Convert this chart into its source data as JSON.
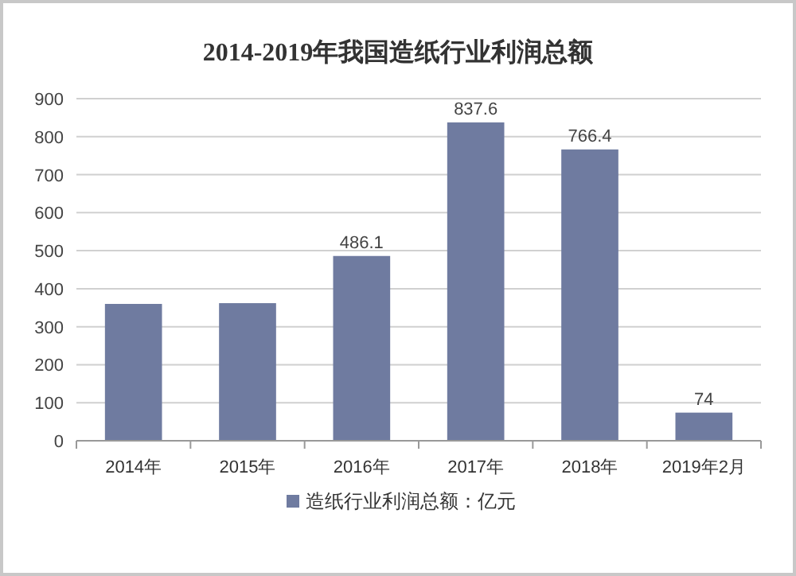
{
  "chart_data": {
    "type": "bar",
    "title": "2014-2019年我国造纸行业利润总额",
    "categories": [
      "2014年",
      "2015年",
      "2016年",
      "2017年",
      "2018年",
      "2019年2月"
    ],
    "series": [
      {
        "name": "造纸行业利润总额：亿元",
        "color": "#6f7ba0",
        "values": [
          360,
          362,
          486.1,
          837.6,
          766.4,
          74
        ],
        "value_labels": [
          null,
          null,
          "486.1",
          "837.6",
          "766.4",
          "74"
        ]
      }
    ],
    "ylim": [
      0,
      900
    ],
    "yticks": [
      0,
      100,
      200,
      300,
      400,
      500,
      600,
      700,
      800,
      900
    ],
    "grid": "y",
    "legend": "bottom"
  }
}
